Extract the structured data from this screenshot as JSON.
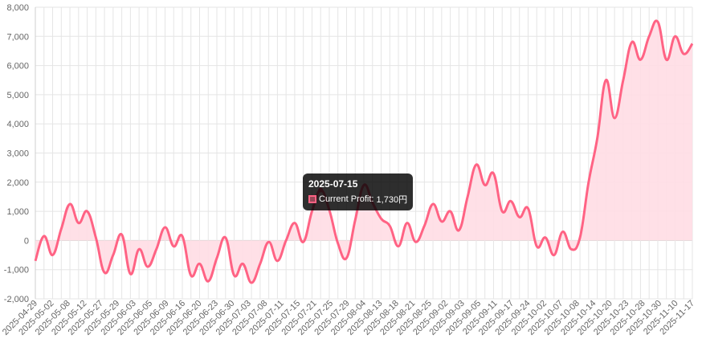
{
  "chart_data": {
    "type": "area",
    "title": "",
    "xlabel": "",
    "ylabel": "",
    "ylim": [
      -2000,
      8000
    ],
    "y_ticks": [
      "-2,000",
      "-1,000",
      "0",
      "1,000",
      "2,000",
      "3,000",
      "4,000",
      "5,000",
      "6,000",
      "7,000",
      "8,000"
    ],
    "grid": true,
    "legend": "none",
    "colors": {
      "line": "#ff6384",
      "fill": "#ffdde4"
    },
    "x_tick_labels": [
      "2025-04-29",
      "2025-05-02",
      "2025-05-08",
      "2025-05-12",
      "2025-05-27",
      "2025-05-29",
      "2025-06-03",
      "2025-06-05",
      "2025-06-09",
      "2025-06-16",
      "2025-06-20",
      "2025-06-23",
      "2025-06-30",
      "2025-07-03",
      "2025-07-08",
      "2025-07-11",
      "2025-07-15",
      "2025-07-21",
      "2025-07-25",
      "2025-07-29",
      "2025-08-04",
      "2025-08-13",
      "2025-08-18",
      "2025-08-21",
      "2025-08-25",
      "2025-09-02",
      "2025-09-03",
      "2025-09-05",
      "2025-09-11",
      "2025-09-17",
      "2025-09-24",
      "2025-10-02",
      "2025-10-07",
      "2025-10-08",
      "2025-10-14",
      "2025-10-20",
      "2025-10-23",
      "2025-10-28",
      "2025-10-30",
      "2025-11-10",
      "2025-11-17"
    ],
    "series": [
      {
        "name": "Current Profit",
        "values": [
          -700,
          150,
          -500,
          400,
          1250,
          600,
          1000,
          100,
          -1100,
          -500,
          200,
          -1150,
          -300,
          -900,
          -300,
          450,
          -200,
          150,
          -1200,
          -800,
          -1400,
          -600,
          100,
          -1200,
          -800,
          -1450,
          -800,
          -50,
          -700,
          0,
          600,
          -50,
          1000,
          1730,
          1050,
          -100,
          -600,
          700,
          1900,
          1300,
          750,
          500,
          -200,
          600,
          -50,
          500,
          1250,
          650,
          1000,
          350,
          1500,
          2600,
          1900,
          2300,
          1000,
          1350,
          800,
          1100,
          -200,
          100,
          -500,
          300,
          -300,
          100,
          2000,
          3500,
          5500,
          4200,
          5500,
          6800,
          6200,
          7000,
          7500,
          6200,
          7000,
          6400,
          6750
        ]
      }
    ],
    "tooltip": {
      "date": "2025-07-15",
      "series": "Current Profit",
      "value": "1,730円",
      "index": 33
    }
  }
}
